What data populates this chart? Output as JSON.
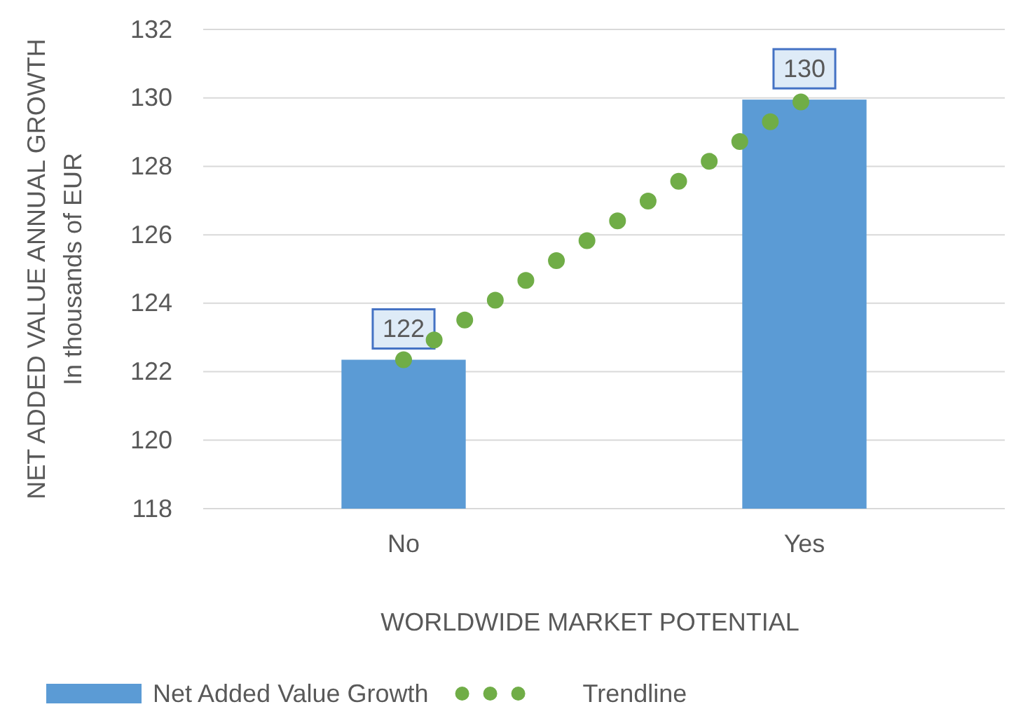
{
  "chart_data": {
    "type": "bar",
    "xlabel": "WORLDWIDE MARKET POTENTIAL",
    "ylabel": "NET ADDED VALUE ANNUAL GROWTH\nIn thousands of EUR",
    "categories": [
      "No",
      "Yes"
    ],
    "series": [
      {
        "name": "Net Added Value Growth",
        "color": "#5b9bd5",
        "values": [
          122.35,
          129.95
        ],
        "value_labels": [
          "122",
          "130"
        ]
      },
      {
        "name": "Trendline",
        "type": "line",
        "color": "#70ad47",
        "line_style": "dotted",
        "values": [
          122.35,
          129.95
        ]
      }
    ],
    "ylim": [
      118,
      132
    ],
    "yticks": [
      118,
      120,
      122,
      124,
      126,
      128,
      130,
      132
    ],
    "grid": "y",
    "legend": "bottom"
  }
}
